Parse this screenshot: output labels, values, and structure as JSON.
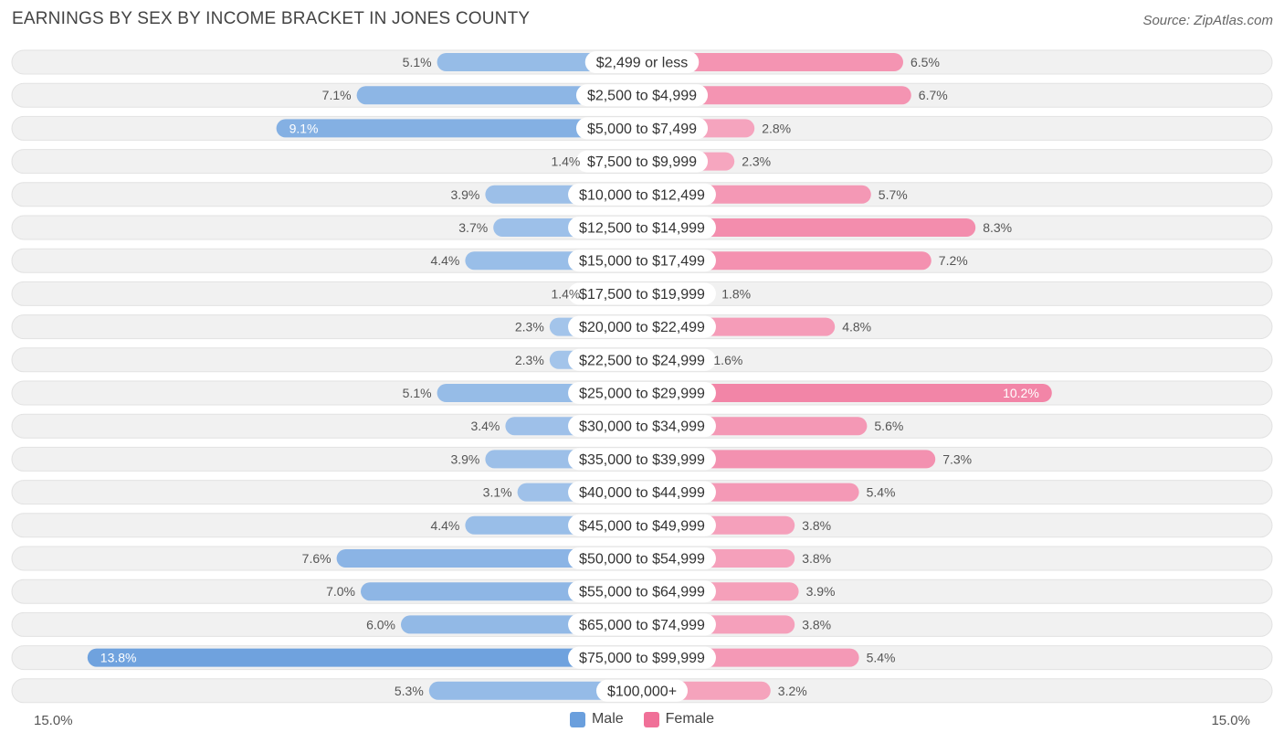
{
  "title": "EARNINGS BY SEX BY INCOME BRACKET IN JONES COUNTY",
  "source": "Source: ZipAtlas.com",
  "colors": {
    "male": "#6a9fdd",
    "female": "#f07098",
    "row_bg": "#f1f1f1",
    "label_bg": "#ffffff"
  },
  "legend": {
    "male": "Male",
    "female": "Female"
  },
  "axis": {
    "left_label": "15.0%",
    "right_label": "15.0%"
  },
  "chart_data": {
    "type": "bar",
    "orientation": "horizontal-diverging",
    "title": "EARNINGS BY SEX BY INCOME BRACKET IN JONES COUNTY",
    "xlim": [
      -15.0,
      15.0
    ],
    "categories": [
      "$2,499 or less",
      "$2,500 to $4,999",
      "$5,000 to $7,499",
      "$7,500 to $9,999",
      "$10,000 to $12,499",
      "$12,500 to $14,999",
      "$15,000 to $17,499",
      "$17,500 to $19,999",
      "$20,000 to $22,499",
      "$22,500 to $24,999",
      "$25,000 to $29,999",
      "$30,000 to $34,999",
      "$35,000 to $39,999",
      "$40,000 to $44,999",
      "$45,000 to $49,999",
      "$50,000 to $54,999",
      "$55,000 to $64,999",
      "$65,000 to $74,999",
      "$75,000 to $99,999",
      "$100,000+"
    ],
    "series": [
      {
        "name": "Male",
        "values": [
          5.1,
          7.1,
          9.1,
          1.4,
          3.9,
          3.7,
          4.4,
          1.4,
          2.3,
          2.3,
          5.1,
          3.4,
          3.9,
          3.1,
          4.4,
          7.6,
          7.0,
          6.0,
          13.8,
          5.3
        ]
      },
      {
        "name": "Female",
        "values": [
          6.5,
          6.7,
          2.8,
          2.3,
          5.7,
          8.3,
          7.2,
          1.8,
          4.8,
          1.6,
          10.2,
          5.6,
          7.3,
          5.4,
          3.8,
          3.8,
          3.9,
          3.8,
          5.4,
          3.2
        ]
      }
    ],
    "value_labels": {
      "male": [
        "5.1%",
        "7.1%",
        "9.1%",
        "1.4%",
        "3.9%",
        "3.7%",
        "4.4%",
        "1.4%",
        "2.3%",
        "2.3%",
        "5.1%",
        "3.4%",
        "3.9%",
        "3.1%",
        "4.4%",
        "7.6%",
        "7.0%",
        "6.0%",
        "13.8%",
        "5.3%"
      ],
      "female": [
        "6.5%",
        "6.7%",
        "2.8%",
        "2.3%",
        "5.7%",
        "8.3%",
        "7.2%",
        "1.8%",
        "4.8%",
        "1.6%",
        "10.2%",
        "5.6%",
        "7.3%",
        "5.4%",
        "3.8%",
        "3.8%",
        "3.9%",
        "3.8%",
        "5.4%",
        "3.2%"
      ]
    }
  }
}
